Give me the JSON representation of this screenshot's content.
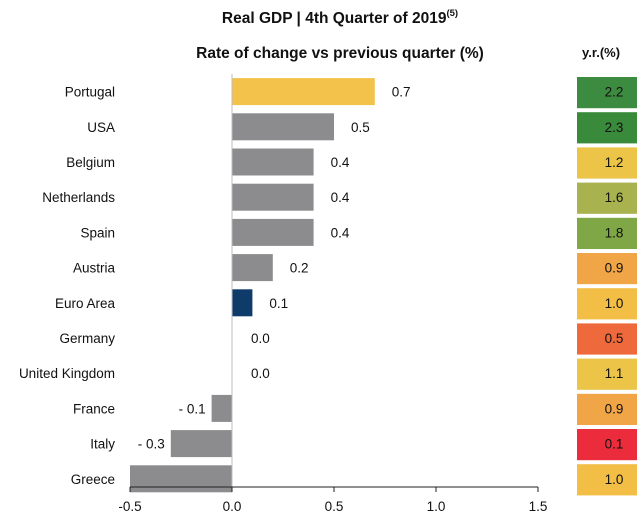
{
  "title": {
    "line1": "Real GDP | 4th Quarter of 2019",
    "footnote": "(5)",
    "line2": "Rate of change vs previous quarter (%)"
  },
  "yoy_header": "y.r.(%)",
  "chart_data": {
    "type": "bar",
    "orientation": "horizontal",
    "categories": [
      "Portugal",
      "USA",
      "Belgium",
      "Netherlands",
      "Spain",
      "Austria",
      "Euro Area",
      "Germany",
      "United Kingdom",
      "France",
      "Italy",
      "Greece"
    ],
    "values": [
      0.7,
      0.5,
      0.4,
      0.4,
      0.4,
      0.2,
      0.1,
      0.0,
      0.0,
      -0.1,
      -0.3,
      -0.5
    ],
    "value_labels": [
      "0.7",
      "0.5",
      "0.4",
      "0.4",
      "0.4",
      "0.2",
      "0.1",
      "0.0",
      "0.0",
      "- 0.1",
      "- 0.3",
      ""
    ],
    "bar_colors": [
      "#f2c24b",
      "#8c8c8e",
      "#8c8c8e",
      "#8c8c8e",
      "#8c8c8e",
      "#8c8c8e",
      "#0f3b6b",
      "#8c8c8e",
      "#8c8c8e",
      "#8c8c8e",
      "#8c8c8e",
      "#8c8c8e"
    ],
    "xlim": [
      -0.5,
      1.5
    ],
    "xticks": [
      -0.5,
      0.0,
      0.5,
      1.0,
      1.5
    ],
    "xtick_labels": [
      "-0.5",
      "0.0",
      "0.5",
      "1.0",
      "1.5"
    ],
    "title": "Real GDP | 4th Quarter of 2019",
    "subtitle": "Rate of change vs previous quarter (%)",
    "yoy": {
      "header": "y.r.(%)",
      "values": [
        2.2,
        2.3,
        1.2,
        1.6,
        1.8,
        0.9,
        1.0,
        0.5,
        1.1,
        0.9,
        0.1,
        1.0
      ],
      "labels": [
        "2.2",
        "2.3",
        "1.2",
        "1.6",
        "1.8",
        "0.9",
        "1.0",
        "0.5",
        "1.1",
        "0.9",
        "0.1",
        "1.0"
      ],
      "colors": [
        "#3d8b41",
        "#3a8a3c",
        "#ebc448",
        "#a8b24e",
        "#7fa746",
        "#f0a546",
        "#f2be46",
        "#ee6a3c",
        "#ebc448",
        "#f0a546",
        "#ea2c3c",
        "#f2be46"
      ]
    }
  }
}
